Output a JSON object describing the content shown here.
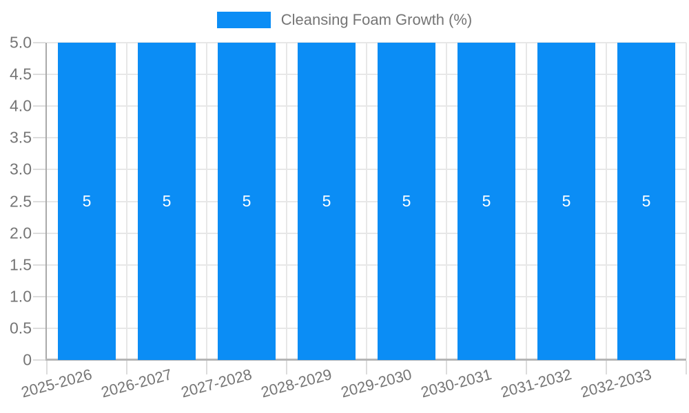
{
  "legend": {
    "label": "Cleansing Foam Growth (%)"
  },
  "chart_data": {
    "type": "bar",
    "title": "",
    "categories": [
      "2025-2026",
      "2026-2027",
      "2027-2028",
      "2028-2029",
      "2029-2030",
      "2030-2031",
      "2031-2032",
      "2032-2033"
    ],
    "series": [
      {
        "name": "Cleansing Foam Growth (%)",
        "values": [
          5,
          5,
          5,
          5,
          5,
          5,
          5,
          5
        ]
      }
    ],
    "bar_labels": [
      "5",
      "5",
      "5",
      "5",
      "5",
      "5",
      "5",
      "5"
    ],
    "xlabel": "",
    "ylabel": "",
    "ylim": [
      0,
      5
    ],
    "yticks": [
      0,
      0.5,
      1,
      1.5,
      2,
      2.5,
      3,
      3.5,
      4,
      4.5,
      5
    ],
    "ytick_labels": [
      "0",
      "0.5",
      "1.0",
      "1.5",
      "2.0",
      "2.5",
      "3.0",
      "3.5",
      "4.0",
      "4.5",
      "5.0"
    ],
    "grid": true,
    "legend_position": "top-center",
    "xtick_rotation_deg": -15
  },
  "colors": {
    "bar": "#0b8df5",
    "grid": "#e7e7e7",
    "axis": "#a9a9a9",
    "text": "#757575",
    "bar_label": "#ffffff"
  }
}
